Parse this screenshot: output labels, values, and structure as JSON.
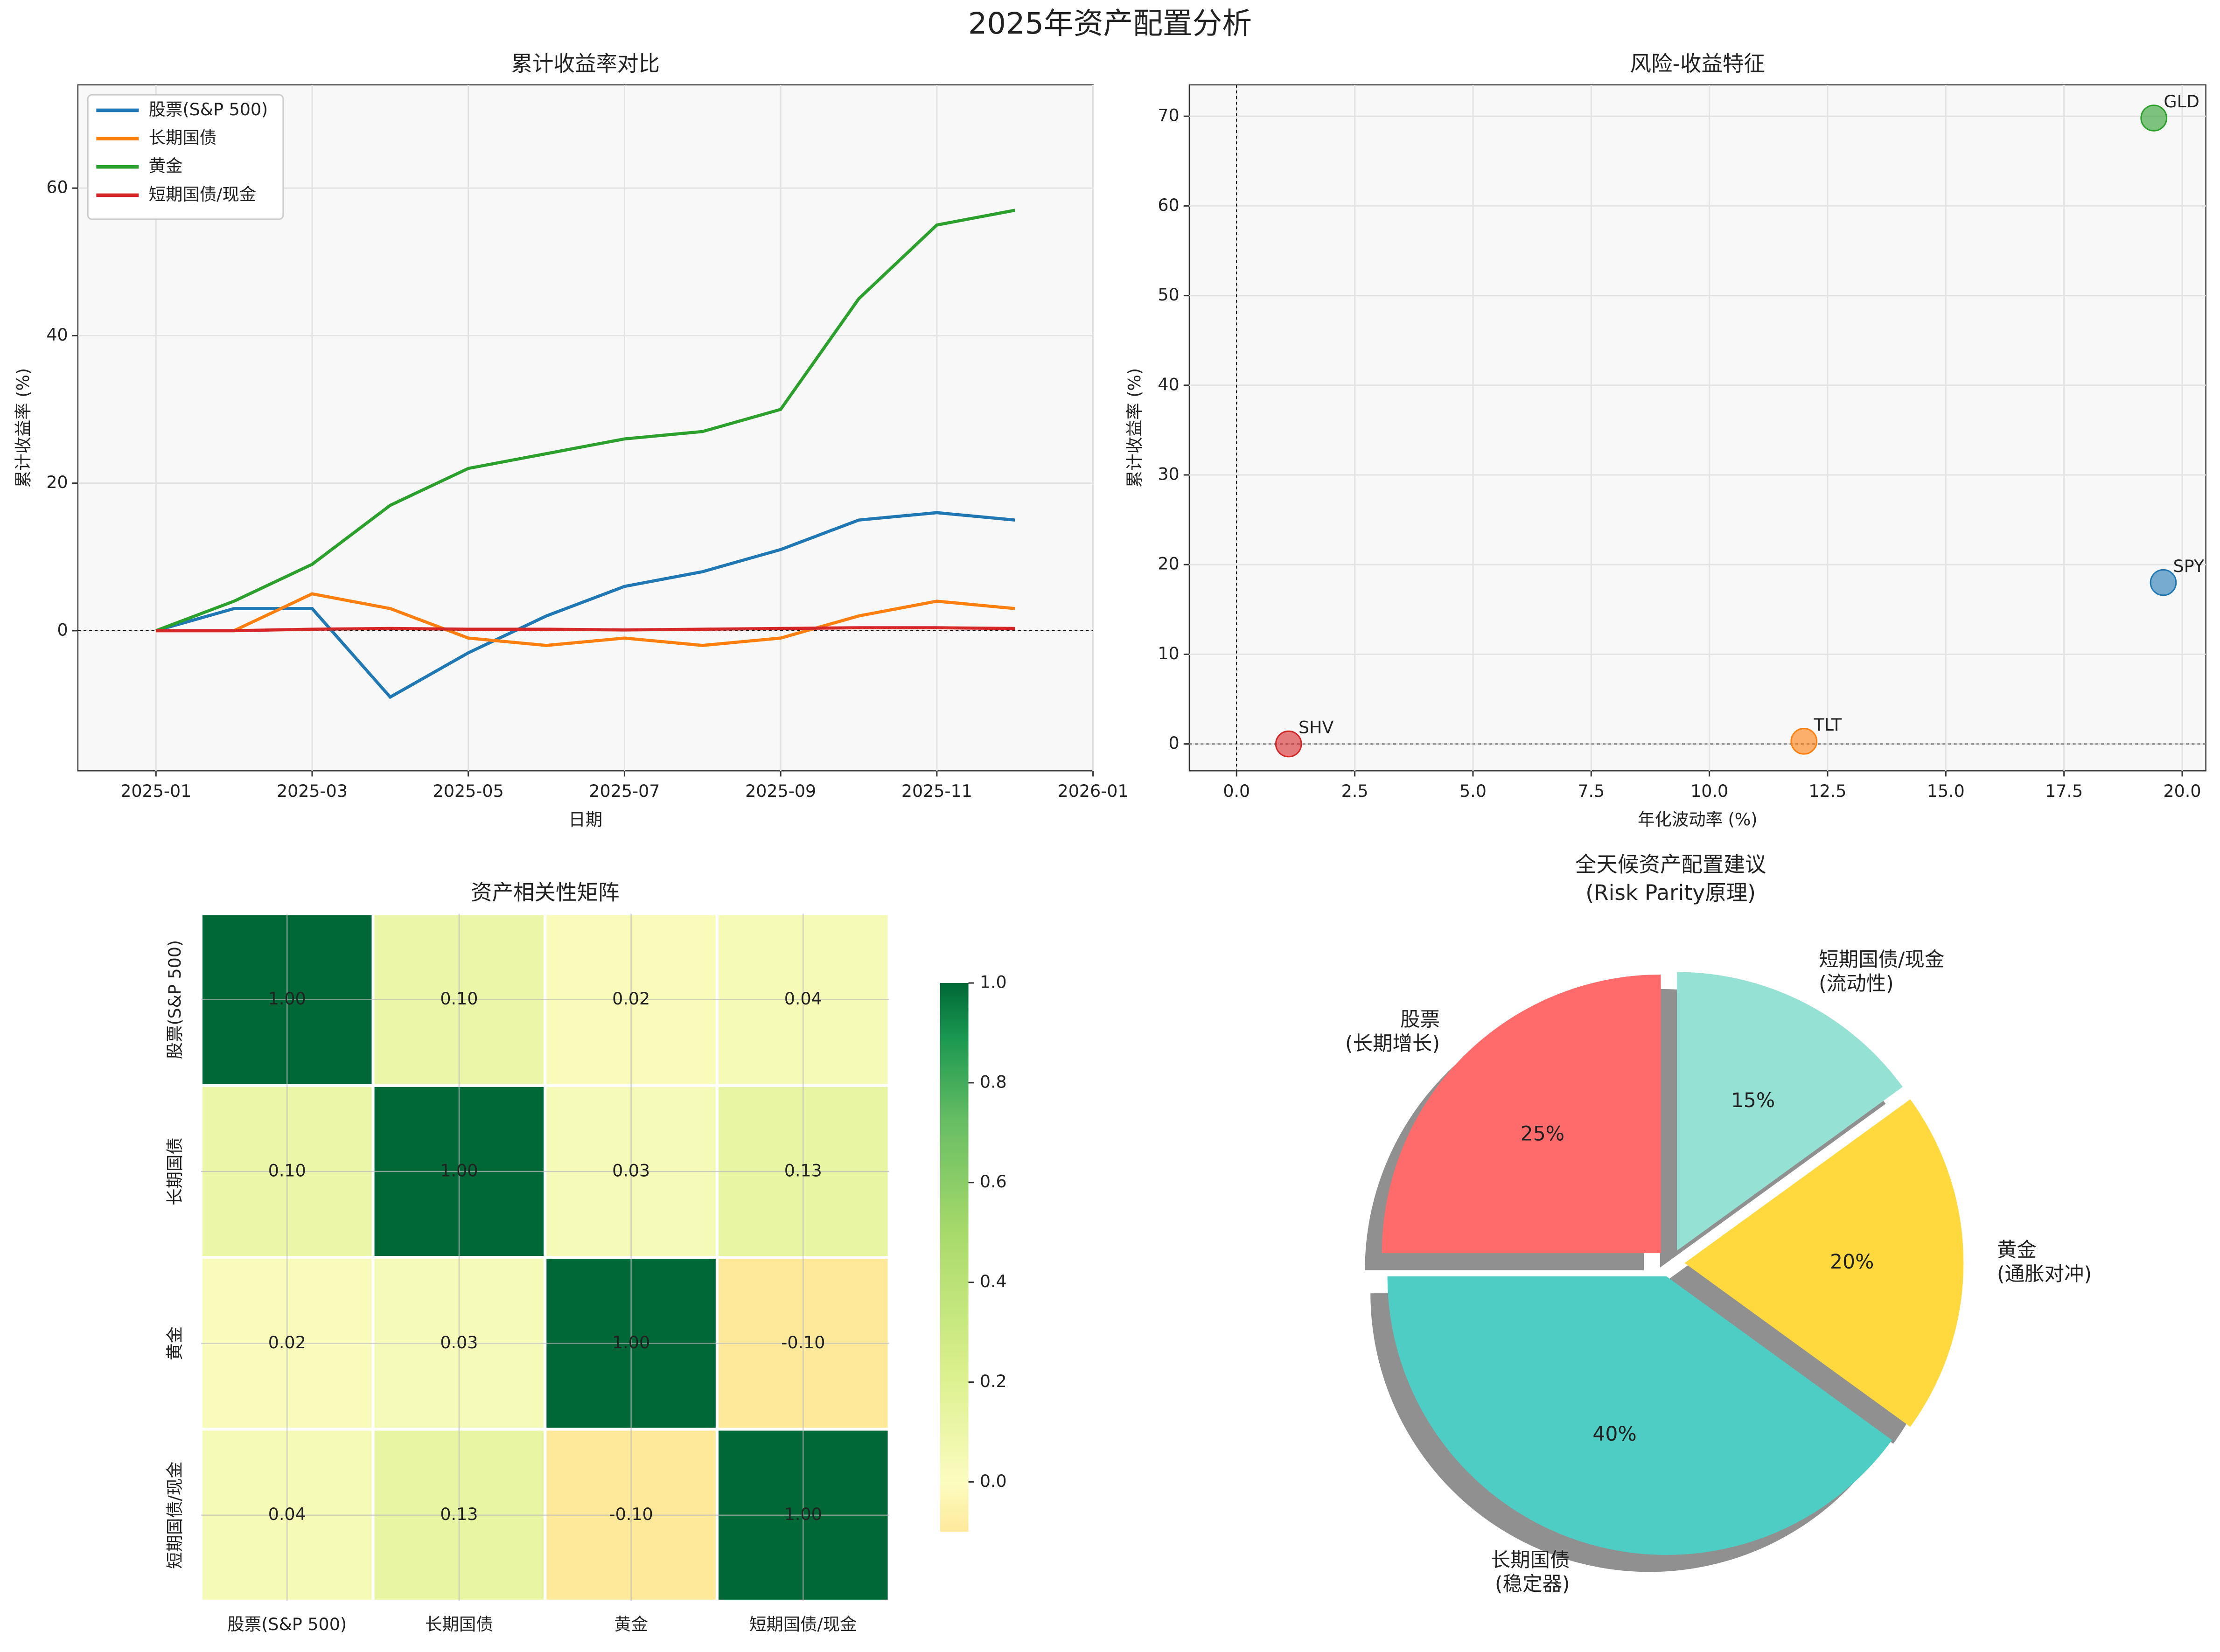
{
  "title": "2025年资产配置分析",
  "chart_data": [
    {
      "type": "line",
      "title": "累计收益率对比",
      "xlabel": "日期",
      "ylabel": "累计收益率 (%)",
      "x": [
        "2025-01",
        "2025-02",
        "2025-03",
        "2025-04",
        "2025-05",
        "2025-06",
        "2025-07",
        "2025-08",
        "2025-09",
        "2025-10",
        "2025-11",
        "2025-12"
      ],
      "series": [
        {
          "name": "股票(S&P 500)",
          "color": "#1f77b4",
          "values": [
            0,
            3,
            3,
            -9,
            -3,
            2,
            6,
            8,
            11,
            15,
            16,
            15
          ]
        },
        {
          "name": "长期国债",
          "color": "#ff7f0e",
          "values": [
            0,
            0,
            5,
            3,
            -1,
            -2,
            -1,
            -2,
            -1,
            2,
            4,
            3
          ]
        },
        {
          "name": "黄金",
          "color": "#2ca02c",
          "values": [
            0,
            4,
            9,
            17,
            22,
            24,
            26,
            27,
            30,
            45,
            55,
            57
          ]
        },
        {
          "name": "短期国债/现金",
          "color": "#d62728",
          "values": [
            0,
            0,
            0.2,
            0.3,
            0.2,
            0.2,
            0.1,
            0.2,
            0.3,
            0.4,
            0.4,
            0.3
          ]
        }
      ],
      "xlim": [
        "2024-12",
        "2026-01"
      ],
      "xticks": [
        "2025-01",
        "2025-03",
        "2025-05",
        "2025-07",
        "2025-09",
        "2025-11",
        "2026-01"
      ],
      "ylim": [
        -19,
        74
      ],
      "yticks": [
        0,
        20,
        40,
        60
      ],
      "grid": true,
      "legend": "upper left"
    },
    {
      "type": "scatter",
      "title": "风险-收益特征",
      "xlabel": "年化波动率 (%)",
      "ylabel": "累计收益率 (%)",
      "labels": [
        "SHV",
        "TLT",
        "GLD",
        "SPY"
      ],
      "x": [
        1.1,
        12,
        19.4,
        19.6
      ],
      "values": [
        0,
        0.3,
        69.8,
        18
      ],
      "colors": [
        "#d62728",
        "#ff7f0e",
        "#2ca02c",
        "#1f77b4"
      ],
      "xlim": [
        -1,
        20.5
      ],
      "xticks": [
        {
          "value": 0,
          "label": "0.0"
        },
        {
          "value": 2.5,
          "label": "2.5"
        },
        {
          "value": 5,
          "label": "5.0"
        },
        {
          "value": 7.5,
          "label": "7.5"
        },
        {
          "value": 10,
          "label": "10.0"
        },
        {
          "value": 12.5,
          "label": "12.5"
        },
        {
          "value": 15,
          "label": "15.0"
        },
        {
          "value": 17.5,
          "label": "17.5"
        },
        {
          "value": 20,
          "label": "20.0"
        }
      ],
      "ylim": [
        -3,
        73.5
      ],
      "yticks": [
        0,
        10,
        20,
        30,
        40,
        50,
        60,
        70
      ],
      "grid": true
    },
    {
      "type": "heatmap",
      "title": "资产相关性矩阵",
      "categories": [
        "股票(S&P 500)",
        "长期国债",
        "黄金",
        "短期国债/现金"
      ],
      "values": [
        [
          1,
          0.1,
          0.02,
          0.04
        ],
        [
          0.1,
          1,
          0.03,
          0.13
        ],
        [
          0.02,
          0.03,
          1,
          -0.1
        ],
        [
          0.04,
          0.13,
          -0.1,
          1
        ]
      ],
      "value_labels": [
        [
          "1.00",
          "0.10",
          "0.02",
          "0.04"
        ],
        [
          "0.10",
          "1.00",
          "0.03",
          "0.13"
        ],
        [
          "0.02",
          "0.03",
          "1.00",
          "-0.10"
        ],
        [
          "0.04",
          "0.13",
          "-0.10",
          "1.00"
        ]
      ],
      "clim": [
        -0.1,
        1
      ],
      "cbar_ticks": [
        {
          "value": 0,
          "label": "0.0"
        },
        {
          "value": 0.2,
          "label": "0.2"
        },
        {
          "value": 0.4,
          "label": "0.4"
        },
        {
          "value": 0.6,
          "label": "0.6"
        },
        {
          "value": 0.8,
          "label": "0.8"
        },
        {
          "value": 1,
          "label": "1.0"
        }
      ]
    },
    {
      "type": "pie",
      "title": "全天候资产配置建议\n(Risk Parity原理)",
      "categories": [
        "股票\n(长期增长)",
        "长期国债\n(稳定器)",
        "黄金\n(通胀对冲)",
        "短期国债/现金\n(流动性)"
      ],
      "values": [
        25,
        40,
        20,
        15
      ],
      "value_labels": [
        "25%",
        "40%",
        "20%",
        "15%"
      ],
      "colors": [
        "#FF6B6B",
        "#4ECDC4",
        "#FFD93D",
        "#95E1D3"
      ],
      "startangle": 90,
      "shadow": true
    }
  ]
}
